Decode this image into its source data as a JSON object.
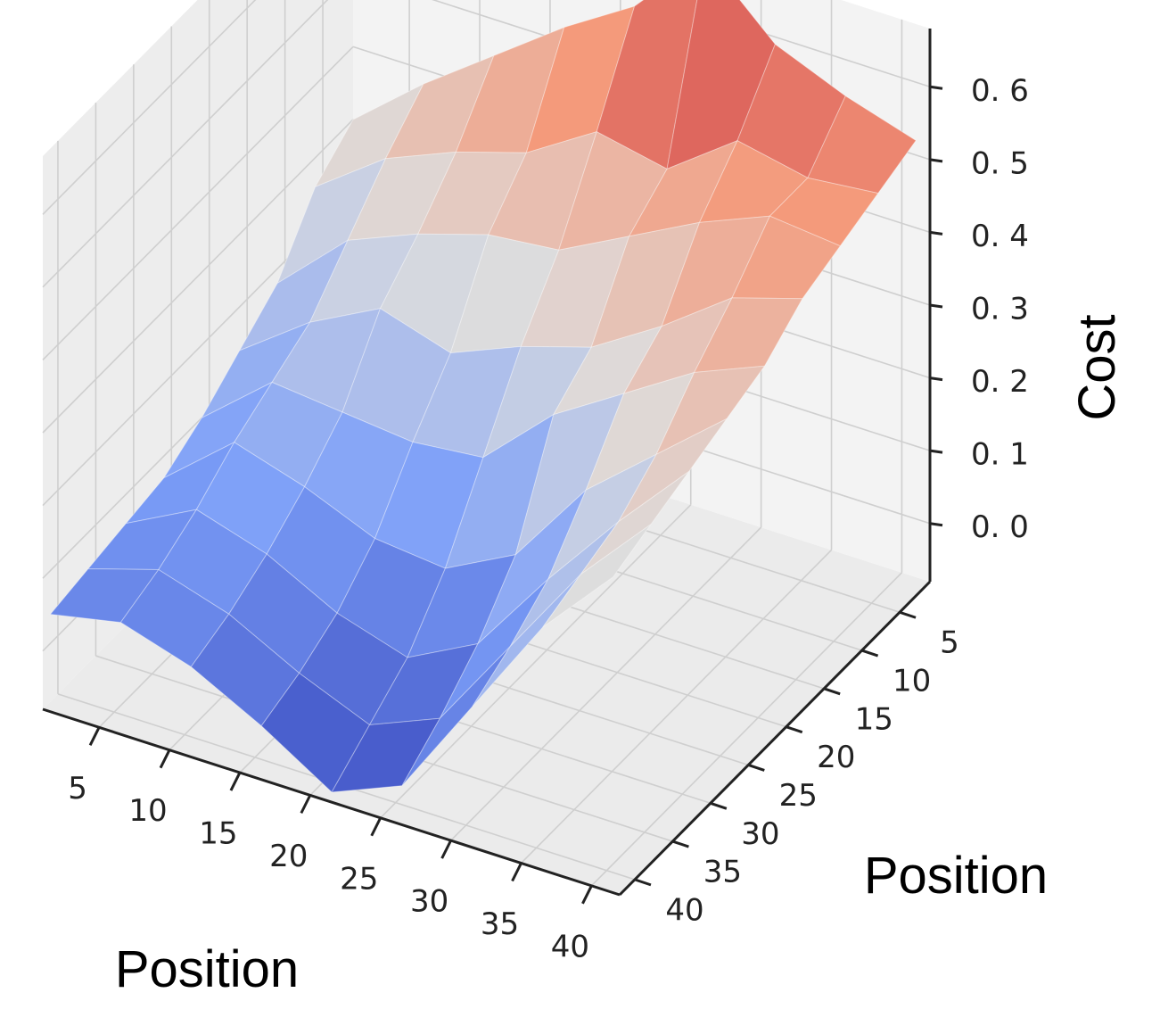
{
  "chart_data": {
    "type": "surface3d",
    "colormap": "coolwarm",
    "xlabel": "Position",
    "ylabel": "Position",
    "zlabel": "Cost",
    "x_ticks": [
      5,
      10,
      15,
      20,
      25,
      30,
      35,
      40
    ],
    "y_ticks": [
      5,
      10,
      15,
      20,
      25,
      30,
      35,
      40
    ],
    "z_ticks": [
      "0. 0",
      "0. 1",
      "0. 2",
      "0. 3",
      "0. 4",
      "0. 5",
      "0. 6"
    ],
    "xlim": [
      1,
      42
    ],
    "ylim": [
      1,
      42
    ],
    "zlim": [
      -0.08,
      0.68
    ],
    "grid": true,
    "x": [
      1,
      6,
      11,
      16,
      21,
      26,
      31,
      36,
      41
    ],
    "y": [
      1,
      6,
      11,
      16,
      21,
      26,
      31,
      36,
      41
    ],
    "z": [
      [
        0.3,
        0.38,
        0.45,
        0.52,
        0.58,
        0.68,
        0.59,
        0.55,
        0.52
      ],
      [
        0.26,
        0.33,
        0.37,
        0.4,
        0.46,
        0.44,
        0.51,
        0.49,
        0.5
      ],
      [
        0.18,
        0.27,
        0.31,
        0.34,
        0.35,
        0.4,
        0.45,
        0.49,
        0.48
      ],
      [
        0.14,
        0.21,
        0.26,
        0.23,
        0.27,
        0.3,
        0.36,
        0.43,
        0.46
      ],
      [
        0.1,
        0.18,
        0.17,
        0.16,
        0.17,
        0.26,
        0.32,
        0.38,
        0.42
      ],
      [
        0.07,
        0.15,
        0.12,
        0.08,
        0.07,
        0.12,
        0.24,
        0.32,
        0.4
      ],
      [
        0.06,
        0.11,
        0.08,
        0.03,
        0.0,
        0.05,
        0.17,
        0.28,
        0.38
      ],
      [
        0.05,
        0.08,
        0.05,
        0.0,
        -0.04,
        0.0,
        0.13,
        0.26,
        0.36
      ],
      [
        0.04,
        0.06,
        0.03,
        -0.02,
        -0.08,
        -0.04,
        0.1,
        0.24,
        0.34
      ]
    ]
  }
}
